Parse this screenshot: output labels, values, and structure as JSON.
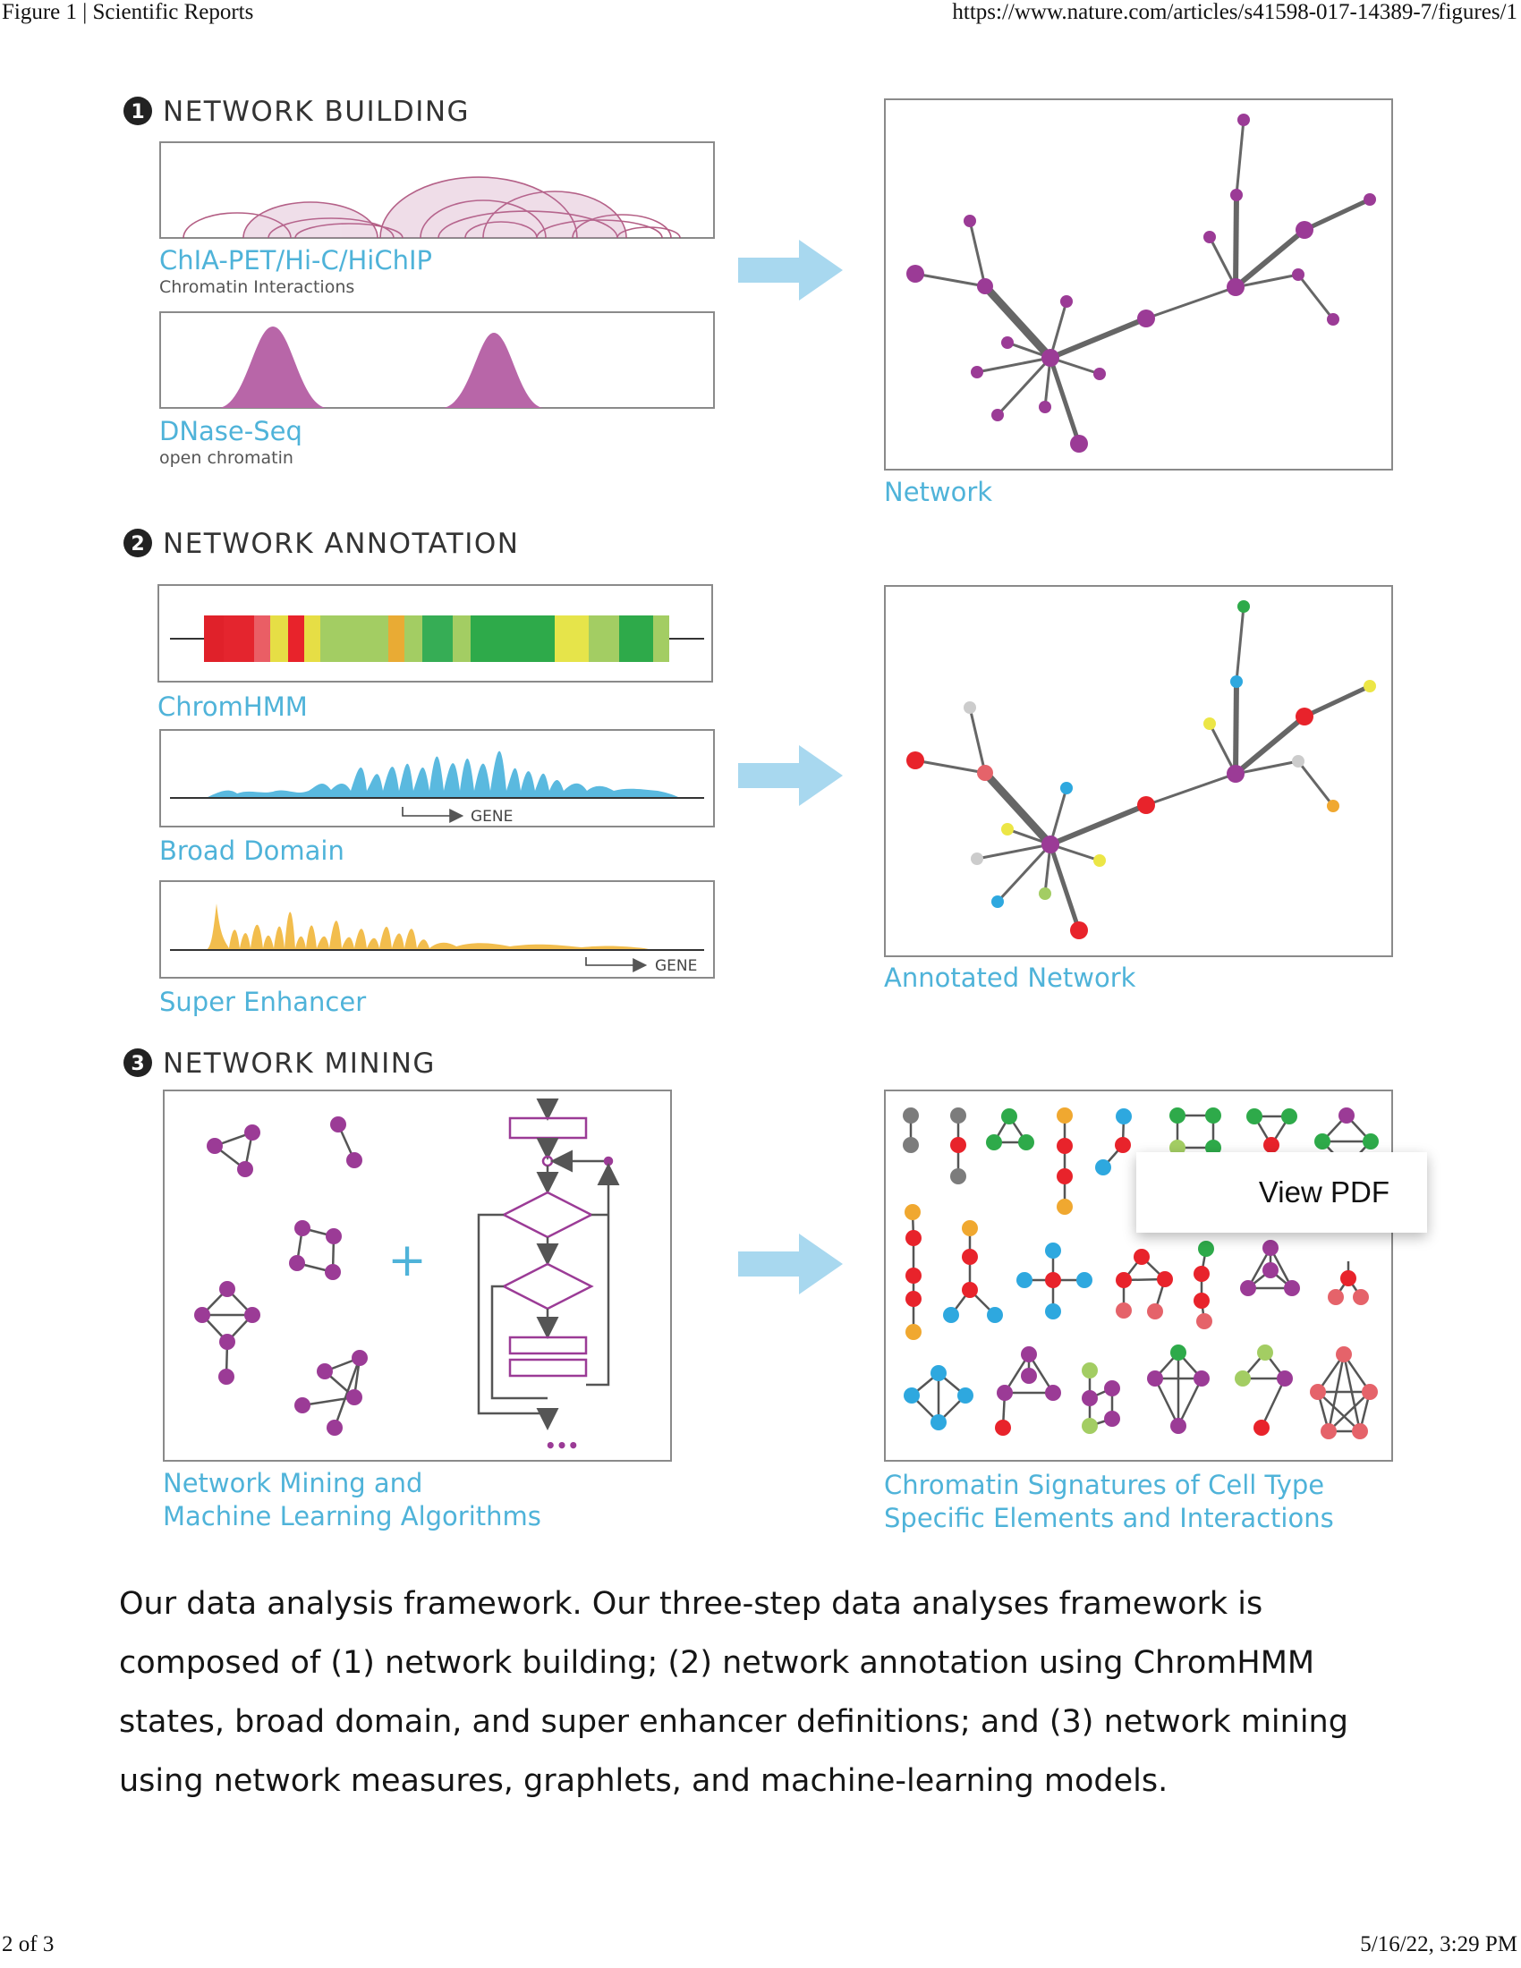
{
  "header": {
    "left": "Figure 1 | Scientific Reports",
    "right": "https://www.nature.com/articles/s41598-017-14389-7/figures/1"
  },
  "footer": {
    "left": "2 of 3",
    "right": "5/16/22, 3:29 PM"
  },
  "sections": [
    {
      "number": "1",
      "title": "NETWORK BUILDING"
    },
    {
      "number": "2",
      "title": "NETWORK ANNOTATION"
    },
    {
      "number": "3",
      "title": "NETWORK MINING"
    }
  ],
  "panels": {
    "chia": {
      "label": "ChIA-PET/Hi-C/HiChIP",
      "sub": "Chromatin Interactions"
    },
    "dnase": {
      "label": "DNase-Seq",
      "sub": "open chromatin"
    },
    "network": {
      "label": "Network"
    },
    "chromhmm": {
      "label": "ChromHMM"
    },
    "broad": {
      "label": "Broad Domain",
      "gene": "GENE"
    },
    "super": {
      "label": "Super Enhancer",
      "gene": "GENE"
    },
    "annotated": {
      "label": "Annotated Network"
    },
    "mining": {
      "label_line1": "Network Mining and",
      "label_line2": "Machine Learning Algorithms",
      "plus": "+",
      "ellipsis": "•••"
    },
    "signatures": {
      "label_line1": "Chromatin Signatures of Cell Type",
      "label_line2": "Specific Elements and Interactions"
    }
  },
  "colors": {
    "accent": "#4fb3d9",
    "node": "#9b3b96",
    "arrow": "#a8d8ef",
    "red": "#e8232b",
    "green": "#2eaa4a",
    "yellow": "#ece646",
    "orange": "#f0a830",
    "blue": "#2ea8df",
    "grey": "#7c7c7c",
    "salmon": "#e5636a"
  },
  "popup": {
    "label": "View PDF"
  },
  "caption": "Our data analysis framework. Our three-step data analyses framework is composed of (1) network building; (2) network annotation using ChromHMM states, broad domain, and super enhancer definitions; and (3) network mining using network measures, graphlets, and machine-learning models."
}
